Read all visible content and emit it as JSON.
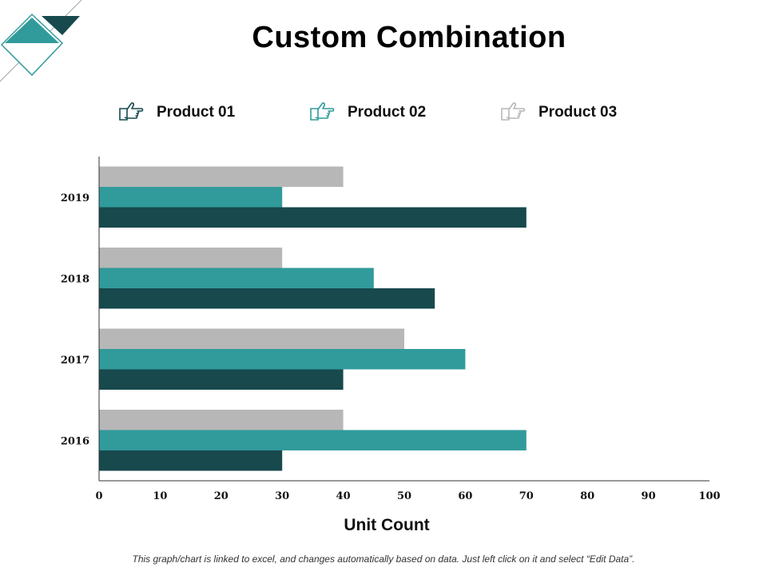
{
  "slide": {
    "title": "Custom Combination",
    "footnote": "This graph/chart is linked to excel, and changes automatically based on data. Just left click on it and select “Edit Data”."
  },
  "colors": {
    "product01": "#17494D",
    "product02": "#319A9B",
    "product03": "#B7B7B7"
  },
  "legend": [
    {
      "label": "Product 01",
      "icon": "pointing-hand-icon"
    },
    {
      "label": "Product 02",
      "icon": "pointing-hand-icon"
    },
    {
      "label": "Product 03",
      "icon": "pointing-hand-icon"
    }
  ],
  "chart_data": {
    "type": "bar",
    "orientation": "horizontal",
    "title": "Custom Combination",
    "xlabel": "Unit Count",
    "ylabel": "",
    "categories": [
      "2016",
      "2017",
      "2018",
      "2019"
    ],
    "series": [
      {
        "name": "Product 01",
        "values": [
          30,
          40,
          55,
          70
        ]
      },
      {
        "name": "Product 02",
        "values": [
          70,
          60,
          45,
          30
        ]
      },
      {
        "name": "Product 03",
        "values": [
          40,
          50,
          30,
          40
        ]
      }
    ],
    "xlim": [
      0,
      100
    ],
    "xticks": [
      "0",
      "10",
      "20",
      "30",
      "40",
      "50",
      "60",
      "70",
      "80",
      "90",
      "100"
    ],
    "grid": false,
    "legend_position": "top"
  }
}
